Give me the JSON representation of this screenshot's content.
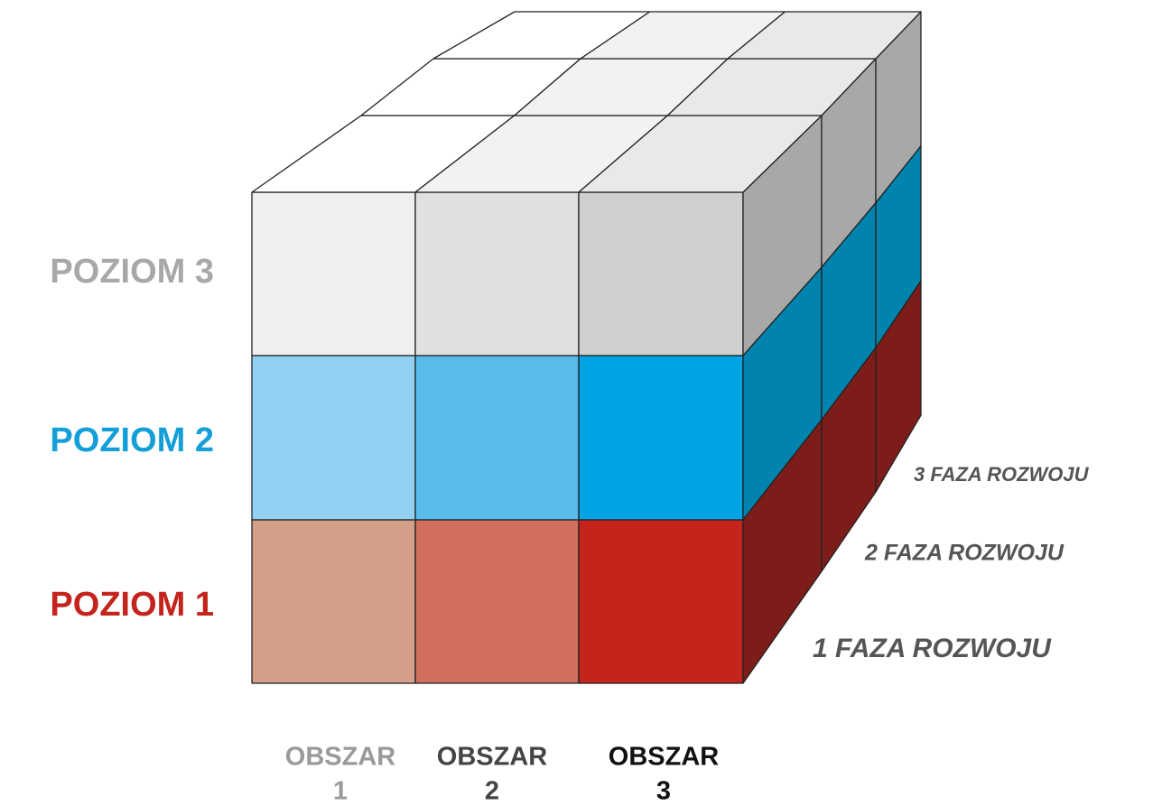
{
  "levels": [
    "POZIOM 3",
    "POZIOM 2",
    "POZIOM 1"
  ],
  "areas": [
    {
      "label": "OBSZAR",
      "number": "1"
    },
    {
      "label": "OBSZAR",
      "number": "2"
    },
    {
      "label": "OBSZAR",
      "number": "3"
    }
  ],
  "phases": [
    "3 FAZA ROZWOJU",
    "2 FAZA ROZWOJU",
    "1 FAZA ROZWOJU"
  ]
}
